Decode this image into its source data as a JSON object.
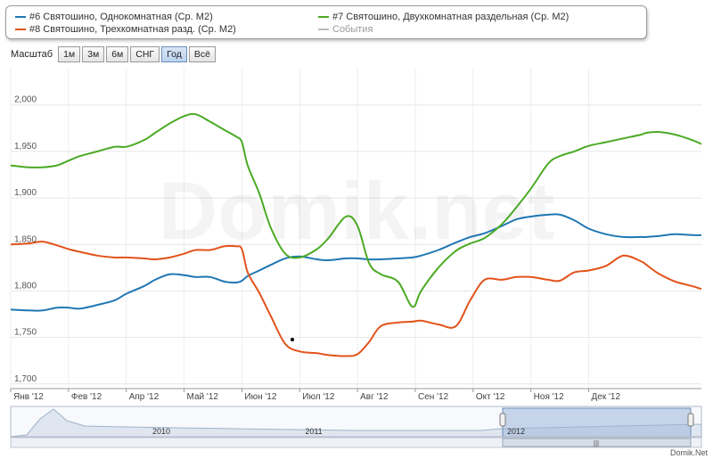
{
  "legend": [
    {
      "name": "#6 Святошино, Однокомнатная (Ср. М2)",
      "color": "#1f77b4"
    },
    {
      "name": "#7 Святошино, Двухкомнатная раздельная (Ср. М2)",
      "color": "#4aaa24"
    },
    {
      "name": "#8 Святошино, Трехкомнатная разд. (Ср. М2)",
      "color": "#e2531a"
    },
    {
      "name": "События",
      "color": "#bbbbbb"
    }
  ],
  "zoom": {
    "label": "Масштаб",
    "buttons": [
      "1м",
      "3м",
      "6м",
      "СНГ",
      "Год",
      "Всё"
    ],
    "active": "Год"
  },
  "watermark": "Domik.net",
  "footer": "Domik.Net",
  "navigator": {
    "years": [
      "2010",
      "2011",
      "2012"
    ]
  },
  "chart_data": {
    "type": "line",
    "x": [
      0,
      0.3,
      0.55,
      0.8,
      1,
      1.2,
      1.5,
      1.8,
      2,
      2.3,
      2.5,
      2.75,
      3,
      3.2,
      3.45,
      3.7,
      3.9,
      4,
      4.1,
      4.3,
      4.5,
      4.75,
      5,
      5.3,
      5.5,
      5.8,
      6,
      6.2,
      6.4,
      6.7,
      6.95,
      7.1,
      7.4,
      7.7,
      7.95,
      8.2,
      8.5,
      8.75,
      9,
      9.3,
      9.5,
      9.75,
      10,
      10.3,
      10.6,
      10.9,
      11,
      11.2,
      11.5,
      11.8,
      11.95
    ],
    "x_tick_labels": [
      "Янв '12",
      "Фев '12",
      "Апр '12",
      "Май '12",
      "Июн '12",
      "Июл '12",
      "Авг '12",
      "Сен '12",
      "Окт '12",
      "Ноя '12",
      "Дек '12"
    ],
    "x_tick_pos": [
      0,
      1,
      2,
      3,
      4,
      5,
      6,
      7,
      8,
      9,
      10
    ],
    "y_ticks": [
      1700,
      1750,
      1800,
      1850,
      1900,
      1950,
      2000
    ],
    "ylim": [
      1695,
      2040
    ],
    "series": [
      {
        "name": "#6 Святошино, Однокомнатная (Ср. М2)",
        "color": "#1f77b4",
        "values": [
          1780,
          1779,
          1779,
          1782,
          1782,
          1781,
          1785,
          1790,
          1797,
          1805,
          1812,
          1818,
          1817,
          1815,
          1815,
          1810,
          1809,
          1811,
          1816,
          1822,
          1828,
          1835,
          1837,
          1834,
          1833,
          1835,
          1835,
          1834,
          1834,
          1835,
          1836,
          1838,
          1844,
          1852,
          1858,
          1862,
          1870,
          1877,
          1880,
          1882,
          1882,
          1876,
          1867,
          1861,
          1858,
          1858,
          1858,
          1859,
          1861,
          1860,
          1860
        ]
      },
      {
        "name": "#7 Святошино, Двухкомнатная раздельная (Ср. М2)",
        "color": "#4aaa24",
        "values": [
          1935,
          1933,
          1933,
          1935,
          1940,
          1945,
          1950,
          1955,
          1955,
          1962,
          1970,
          1980,
          1988,
          1990,
          1982,
          1973,
          1966,
          1960,
          1935,
          1905,
          1868,
          1840,
          1836,
          1845,
          1857,
          1880,
          1870,
          1830,
          1818,
          1810,
          1783,
          1800,
          1825,
          1843,
          1851,
          1857,
          1872,
          1890,
          1910,
          1937,
          1945,
          1950,
          1956,
          1960,
          1964,
          1968,
          1970,
          1971,
          1968,
          1962,
          1958
        ]
      },
      {
        "name": "#8 Святошино, Трехкомнатная разд. (Ср. М2)",
        "color": "#e2531a",
        "values": [
          1850,
          1851,
          1853,
          1849,
          1845,
          1842,
          1838,
          1836,
          1836,
          1835,
          1834,
          1836,
          1840,
          1844,
          1844,
          1848,
          1848,
          1845,
          1820,
          1798,
          1773,
          1743,
          1735,
          1733,
          1731,
          1730,
          1732,
          1745,
          1762,
          1766,
          1767,
          1768,
          1764,
          1762,
          1790,
          1812,
          1812,
          1815,
          1815,
          1812,
          1811,
          1820,
          1822,
          1827,
          1838,
          1832,
          1828,
          1819,
          1810,
          1805,
          1802
        ]
      }
    ]
  }
}
